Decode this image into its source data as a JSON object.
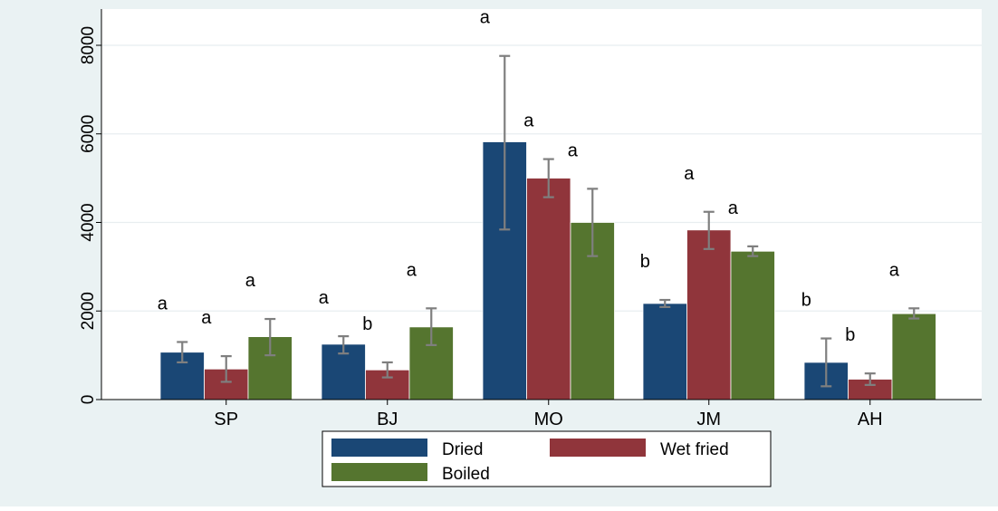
{
  "chart_data": {
    "type": "bar",
    "categories": [
      "SP",
      "BJ",
      "MO",
      "JM",
      "AH"
    ],
    "ylim": [
      0,
      8500
    ],
    "yticks": [
      0,
      2000,
      4000,
      6000,
      8000
    ],
    "grid": true,
    "legend_position": "bottom",
    "series": [
      {
        "name": "Dried",
        "color": "#1a4775",
        "values": [
          1070,
          1250,
          5820,
          2170,
          840
        ],
        "error_low": [
          840,
          1040,
          3840,
          2090,
          300
        ],
        "error_high": [
          1300,
          1430,
          7760,
          2250,
          1380
        ],
        "letters": [
          "a",
          "a",
          "a",
          "b",
          "b"
        ]
      },
      {
        "name": "Wet fried",
        "color": "#90353b",
        "values": [
          690,
          670,
          5000,
          3830,
          460
        ],
        "error_low": [
          400,
          500,
          4570,
          3400,
          330
        ],
        "error_high": [
          980,
          840,
          5430,
          4240,
          590
        ],
        "letters": [
          "a",
          "b",
          "a",
          "a",
          "b"
        ]
      },
      {
        "name": "Boiled",
        "color": "#55752f",
        "values": [
          1420,
          1640,
          4000,
          3350,
          1940
        ],
        "error_low": [
          1000,
          1230,
          3240,
          3240,
          1830
        ],
        "error_high": [
          1820,
          2060,
          4760,
          3460,
          2060
        ],
        "letters": [
          "a",
          "a",
          "a",
          "a",
          "a"
        ]
      }
    ]
  }
}
